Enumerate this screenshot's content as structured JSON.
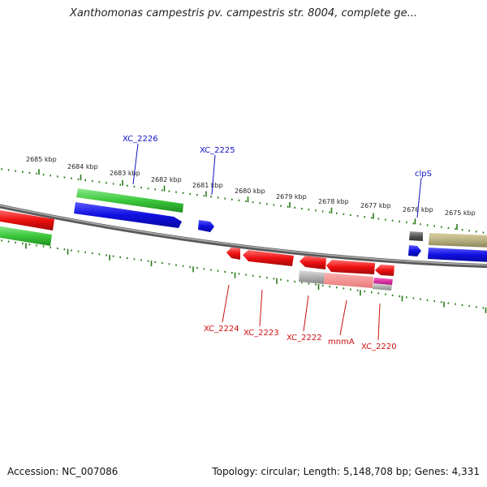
{
  "title": "Xanthomonas campestris pv. campestris str. 8004, complete ge...",
  "footer": {
    "accession": "Accession: NC_007086",
    "summary": "Topology: circular; Length: 5,148,708 bp; Genes: 4,331"
  },
  "scale_labels": [
    "2685 kbp",
    "2684 kbp",
    "2683 kbp",
    "2682 kbp",
    "2681 kbp",
    "2680 kbp",
    "2679 kbp",
    "2678 kbp",
    "2677 kbp",
    "2676 kbp",
    "2675 kbp"
  ],
  "gene_labels_top": [
    "XC_2226",
    "XC_2225",
    "clpS"
  ],
  "gene_labels_bottom": [
    "XC_2224",
    "XC_2223",
    "XC_2222",
    "mnmA",
    "XC_2220"
  ],
  "colors": {
    "top_label": "#1010c0",
    "bottom_label": "#cc1010",
    "backbone": "#808080",
    "tick": "#2a7a1a",
    "forward_cds": "#1010e0",
    "forward_gene": "#30c030",
    "reverse_cds": "#ee1010",
    "reverse_gene": "#b0b0b0",
    "olive_feature": "#b8b080",
    "magenta_feature": "#e0209a"
  }
}
